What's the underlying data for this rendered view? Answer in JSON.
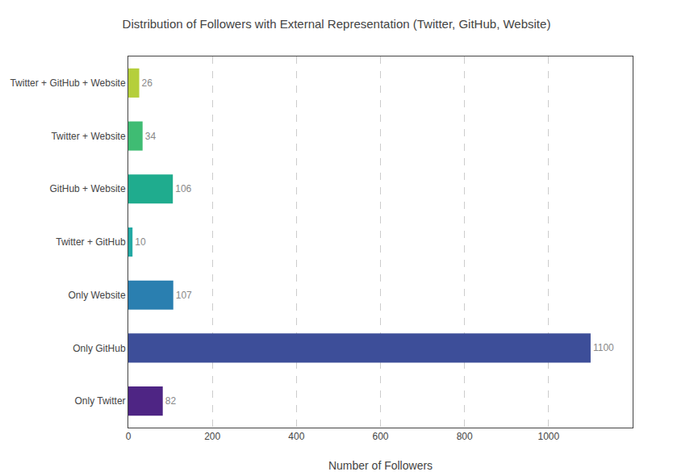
{
  "chart_data": {
    "type": "bar",
    "orientation": "horizontal",
    "title": "Distribution of Followers with External Representation (Twitter, GitHub, Website)",
    "xlabel": "Number of Followers",
    "categories": [
      "Only Twitter",
      "Only GitHub",
      "Only Website",
      "Twitter + GitHub",
      "GitHub + Website",
      "Twitter + Website",
      "Twitter + GitHub + Website"
    ],
    "values": [
      82,
      1100,
      107,
      10,
      106,
      34,
      26
    ],
    "colors": [
      "#4e2584",
      "#3d4e99",
      "#2a7fb0",
      "#22a9a4",
      "#1fac8e",
      "#3fbc73",
      "#b5cf3b"
    ],
    "xlim": [
      0,
      1200
    ],
    "xticks": [
      0,
      200,
      400,
      600,
      800,
      1000
    ],
    "grid": true,
    "data_labels": true
  }
}
